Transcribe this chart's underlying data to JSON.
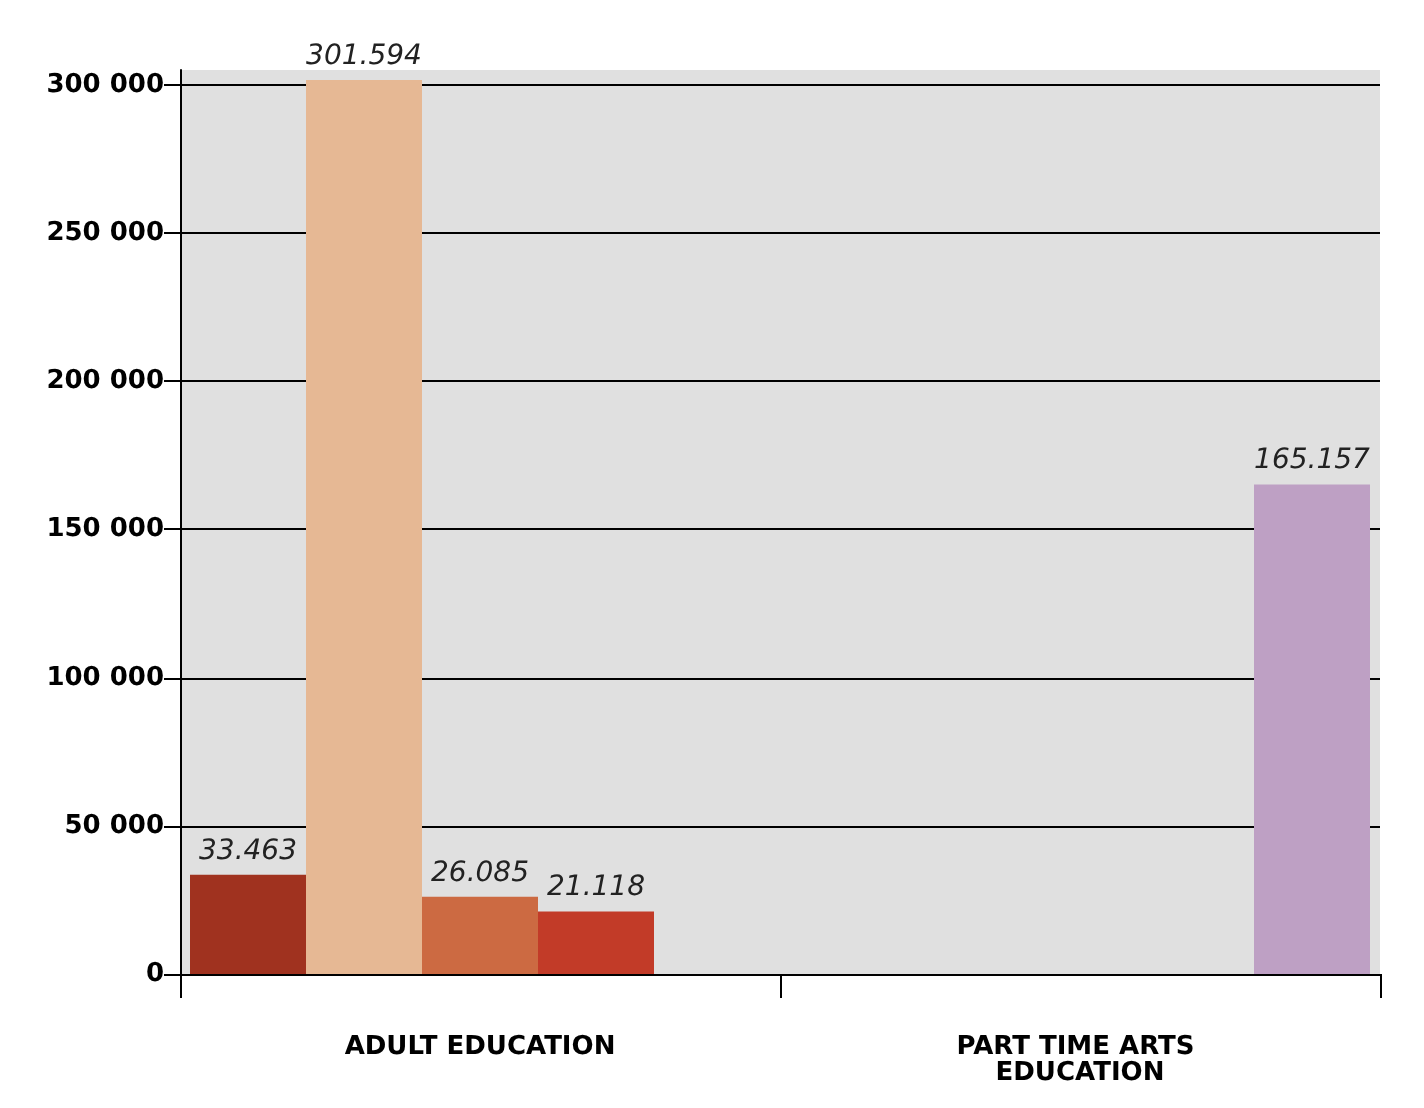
{
  "chart_data": {
    "type": "bar",
    "categories": [
      "ADULT EDUCATION",
      "PART TIME ARTS EDUCATION"
    ],
    "series": [
      {
        "color": "#a0321f",
        "values": [
          33463,
          null
        ],
        "value_labels": [
          "33.463",
          null
        ]
      },
      {
        "color": "#e6b894",
        "values": [
          301594,
          null
        ],
        "value_labels": [
          "301.594",
          null
        ]
      },
      {
        "color": "#cc6a42",
        "values": [
          26085,
          null
        ],
        "value_labels": [
          "26.085",
          null
        ]
      },
      {
        "color": "#c23b28",
        "values": [
          21118,
          null
        ],
        "value_labels": [
          "21.118",
          null
        ]
      },
      {
        "color": "#bea0c4",
        "values": [
          null,
          165157
        ],
        "value_labels": [
          null,
          "165.157"
        ]
      }
    ],
    "ylim": [
      0,
      305000
    ],
    "yticks": [
      {
        "value": 0,
        "label": "0"
      },
      {
        "value": 50000,
        "label": "50 000"
      },
      {
        "value": 100000,
        "label": "100 000"
      },
      {
        "value": 150000,
        "label": "150 000"
      },
      {
        "value": 200000,
        "label": "200 000"
      },
      {
        "value": 250000,
        "label": "250 000"
      },
      {
        "value": 300000,
        "label": "300 000"
      }
    ],
    "grid": "y"
  }
}
